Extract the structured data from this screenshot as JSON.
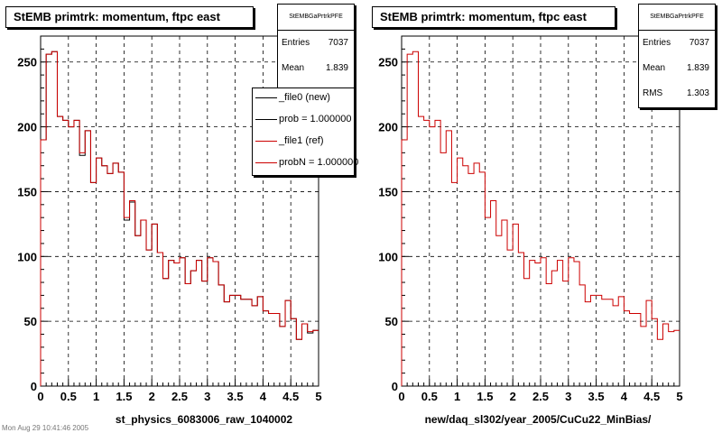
{
  "chart_data": [
    {
      "type": "histogram",
      "title": "StEMB primtrk: momentum, ftpc east",
      "xlabel": "st_physics_6083006_raw_1040002",
      "ylabel": "",
      "xlim": [
        0,
        5
      ],
      "ylim": [
        0,
        270
      ],
      "x_ticks": [
        "0",
        "0.5",
        "1",
        "1.5",
        "2",
        "2.5",
        "3",
        "3.5",
        "4",
        "4.5",
        "5"
      ],
      "y_ticks": [
        "0",
        "50",
        "100",
        "150",
        "200",
        "250"
      ],
      "grid": true,
      "bin_width": 0.1,
      "series": [
        {
          "name": "_file0 (new)",
          "color": "#000000",
          "values": [
            190,
            256,
            258,
            208,
            205,
            200,
            205,
            178,
            197,
            157,
            176,
            170,
            164,
            172,
            165,
            128,
            142,
            116,
            128,
            105,
            125,
            103,
            83,
            97,
            95,
            99,
            79,
            89,
            97,
            81,
            99,
            96,
            78,
            65,
            70,
            70,
            67,
            67,
            62,
            69,
            58,
            56,
            56,
            46,
            66,
            52,
            36,
            48,
            41,
            43
          ]
        },
        {
          "name": "_file1 (ref)",
          "color": "#cc0000",
          "values": [
            190,
            256,
            258,
            208,
            205,
            200,
            205,
            180,
            197,
            157,
            176,
            170,
            164,
            172,
            165,
            130,
            143,
            116,
            128,
            105,
            125,
            103,
            83,
            97,
            95,
            99,
            79,
            89,
            97,
            81,
            99,
            96,
            78,
            65,
            70,
            70,
            67,
            67,
            62,
            69,
            58,
            56,
            56,
            46,
            66,
            52,
            36,
            48,
            42,
            43
          ]
        }
      ],
      "stats_box": {
        "header": "StEMBGaPrtrkPFE",
        "entries_label": "Entries",
        "entries": "7037",
        "mean_label": "Mean",
        "mean": "1.839"
      },
      "legend": {
        "placement": "top-right",
        "entries": [
          {
            "label": "_file0 (new)",
            "color": "#000000"
          },
          {
            "label": "prob = 1.000000",
            "color": "#000000"
          },
          {
            "label": "_file1 (ref)",
            "color": "#cc0000"
          },
          {
            "label": "probN = 1.000000",
            "color": "#cc0000"
          }
        ]
      }
    },
    {
      "type": "histogram",
      "title": "StEMB primtrk: momentum, ftpc east",
      "xlabel": "new/daq_sl302/year_2005/CuCu22_MinBias/",
      "ylabel": "",
      "xlim": [
        0,
        5
      ],
      "ylim": [
        0,
        270
      ],
      "x_ticks": [
        "0",
        "0.5",
        "1",
        "1.5",
        "2",
        "2.5",
        "3",
        "3.5",
        "4",
        "4.5",
        "5"
      ],
      "y_ticks": [
        "0",
        "50",
        "100",
        "150",
        "200",
        "250"
      ],
      "grid": true,
      "bin_width": 0.1,
      "series": [
        {
          "name": "",
          "color": "#cc0000",
          "values": [
            190,
            256,
            258,
            208,
            205,
            200,
            205,
            180,
            197,
            157,
            176,
            170,
            164,
            172,
            165,
            130,
            143,
            116,
            128,
            105,
            125,
            103,
            83,
            97,
            95,
            99,
            79,
            89,
            97,
            81,
            99,
            96,
            78,
            65,
            70,
            70,
            67,
            67,
            62,
            69,
            58,
            56,
            56,
            46,
            66,
            52,
            36,
            48,
            42,
            43
          ]
        }
      ],
      "stats_box": {
        "header": "StEMBGaPrtrkPFE",
        "entries_label": "Entries",
        "entries": "7037",
        "mean_label": "Mean",
        "mean": "1.839",
        "rms_label": "RMS",
        "rms": "1.303"
      }
    }
  ],
  "footer": "Mon Aug 29 10:41:46 2005"
}
